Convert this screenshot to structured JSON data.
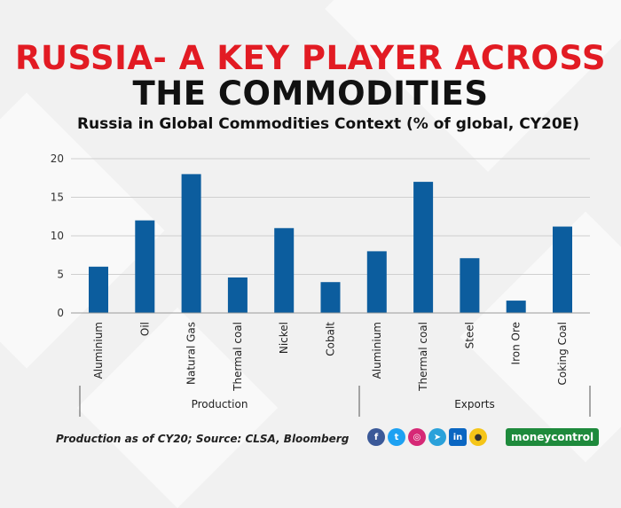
{
  "header": {
    "title_line1": "RUSSIA- A KEY PLAYER ACROSS",
    "title_line2": "THE COMMODITIES"
  },
  "chart_data": {
    "type": "bar",
    "title": "Russia in Global Commodities Context (% of global, CY20E)",
    "categories": [
      "Aluminium",
      "Oil",
      "Natural Gas",
      "Thermal coal",
      "Nickel",
      "Cobalt",
      "Aluminium",
      "Thermal coal",
      "Steel",
      "Iron Ore",
      "Coking Coal"
    ],
    "values": [
      6.0,
      12.0,
      18.0,
      4.6,
      11.0,
      4.0,
      8.0,
      17.0,
      7.1,
      1.6,
      11.2
    ],
    "groups": [
      {
        "label": "Production",
        "start": 0,
        "end": 5
      },
      {
        "label": "Exports",
        "start": 6,
        "end": 10
      }
    ],
    "yticks": [
      0,
      5,
      10,
      15,
      20
    ],
    "ylim": [
      0,
      20
    ],
    "grid": true,
    "bar_color": "#0c5d9e"
  },
  "footer": {
    "source": "Production as of CY20; Source: CLSA, Bloomberg",
    "social_icons": [
      "facebook-icon",
      "twitter-icon",
      "instagram-icon",
      "telegram-icon",
      "linkedin-icon",
      "koo-icon"
    ],
    "brand": "moneycontrol"
  }
}
